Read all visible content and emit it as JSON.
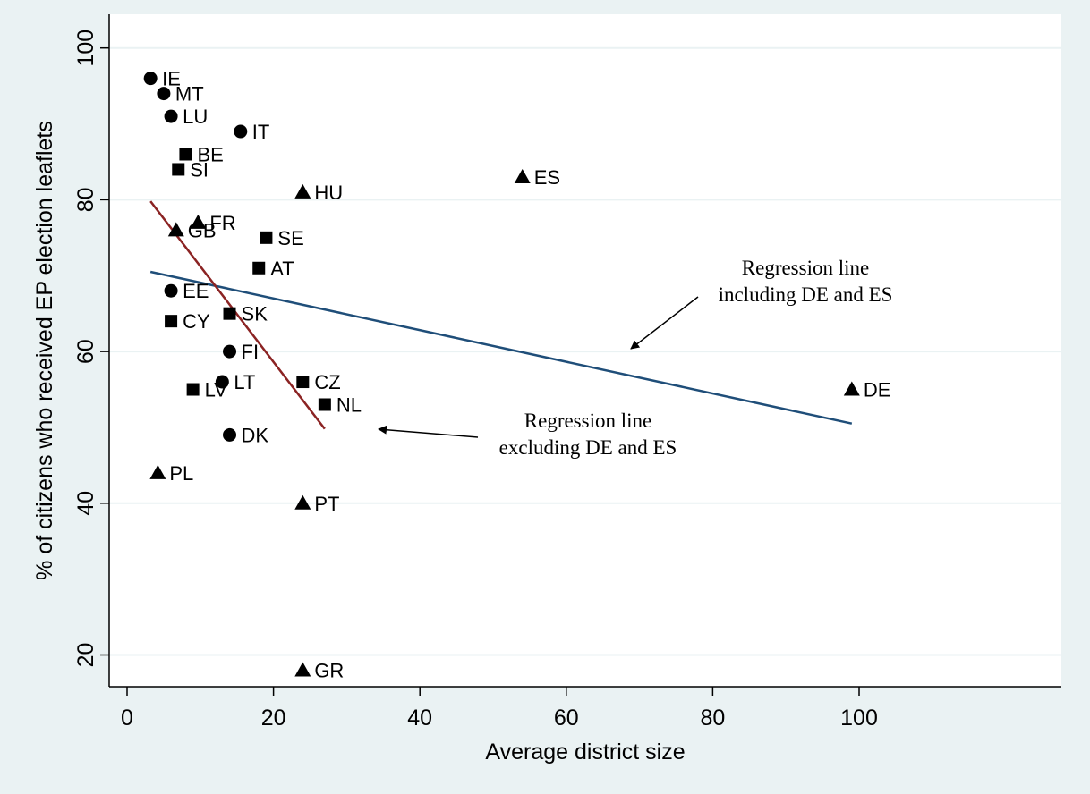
{
  "chart_data": {
    "type": "scatter",
    "xlabel": "Average district size",
    "ylabel": "% of citizens who received EP election leaflets",
    "xlim": [
      0,
      100
    ],
    "ylim": [
      20,
      100
    ],
    "xticks": [
      "0",
      "20",
      "40",
      "60",
      "80",
      "100"
    ],
    "yticks": [
      "20",
      "40",
      "60",
      "80",
      "100"
    ],
    "grid": "horizontal",
    "points": [
      {
        "label": "IE",
        "x": 3.2,
        "y": 96,
        "marker": "circle"
      },
      {
        "label": "MT",
        "x": 5,
        "y": 94,
        "marker": "circle"
      },
      {
        "label": "LU",
        "x": 6,
        "y": 91,
        "marker": "circle"
      },
      {
        "label": "IT",
        "x": 15.5,
        "y": 89,
        "marker": "circle"
      },
      {
        "label": "EE",
        "x": 6,
        "y": 68,
        "marker": "circle"
      },
      {
        "label": "FI",
        "x": 14,
        "y": 60,
        "marker": "circle"
      },
      {
        "label": "LT",
        "x": 13,
        "y": 56,
        "marker": "circle"
      },
      {
        "label": "DK",
        "x": 14,
        "y": 49,
        "marker": "circle"
      },
      {
        "label": "BE",
        "x": 8,
        "y": 86,
        "marker": "square"
      },
      {
        "label": "SI",
        "x": 7,
        "y": 84,
        "marker": "square"
      },
      {
        "label": "SE",
        "x": 19,
        "y": 75,
        "marker": "square"
      },
      {
        "label": "AT",
        "x": 18,
        "y": 71,
        "marker": "square"
      },
      {
        "label": "SK",
        "x": 14,
        "y": 65,
        "marker": "square"
      },
      {
        "label": "CY",
        "x": 6,
        "y": 64,
        "marker": "square"
      },
      {
        "label": "LV",
        "x": 9,
        "y": 55,
        "marker": "square"
      },
      {
        "label": "CZ",
        "x": 24,
        "y": 56,
        "marker": "square"
      },
      {
        "label": "NL",
        "x": 27,
        "y": 53,
        "marker": "square"
      },
      {
        "label": "HU",
        "x": 24,
        "y": 81,
        "marker": "triangle"
      },
      {
        "label": "FR",
        "x": 9.7,
        "y": 77,
        "marker": "triangle"
      },
      {
        "label": "GB",
        "x": 6.7,
        "y": 76,
        "marker": "triangle"
      },
      {
        "label": "ES",
        "x": 54,
        "y": 83,
        "marker": "triangle"
      },
      {
        "label": "DE",
        "x": 99,
        "y": 55,
        "marker": "triangle"
      },
      {
        "label": "PL",
        "x": 4.2,
        "y": 44,
        "marker": "triangle"
      },
      {
        "label": "PT",
        "x": 24,
        "y": 40,
        "marker": "triangle"
      },
      {
        "label": "GR",
        "x": 24,
        "y": 18,
        "marker": "triangle"
      }
    ],
    "regression_lines": [
      {
        "x": [
          3.2,
          99
        ],
        "y": [
          70.5,
          50.5
        ],
        "color": "#1f4e79"
      },
      {
        "x": [
          3.2,
          27
        ],
        "y": [
          79.8,
          49.8
        ],
        "color": "#8b2323"
      }
    ],
    "annotations": [
      {
        "lines": [
          "Regression line",
          "including DE and ES"
        ],
        "point_to": [
          55,
          60
        ]
      },
      {
        "lines": [
          "Regression line",
          "excluding DE and ES"
        ],
        "point_to": [
          27.2,
          49.8
        ]
      }
    ]
  }
}
